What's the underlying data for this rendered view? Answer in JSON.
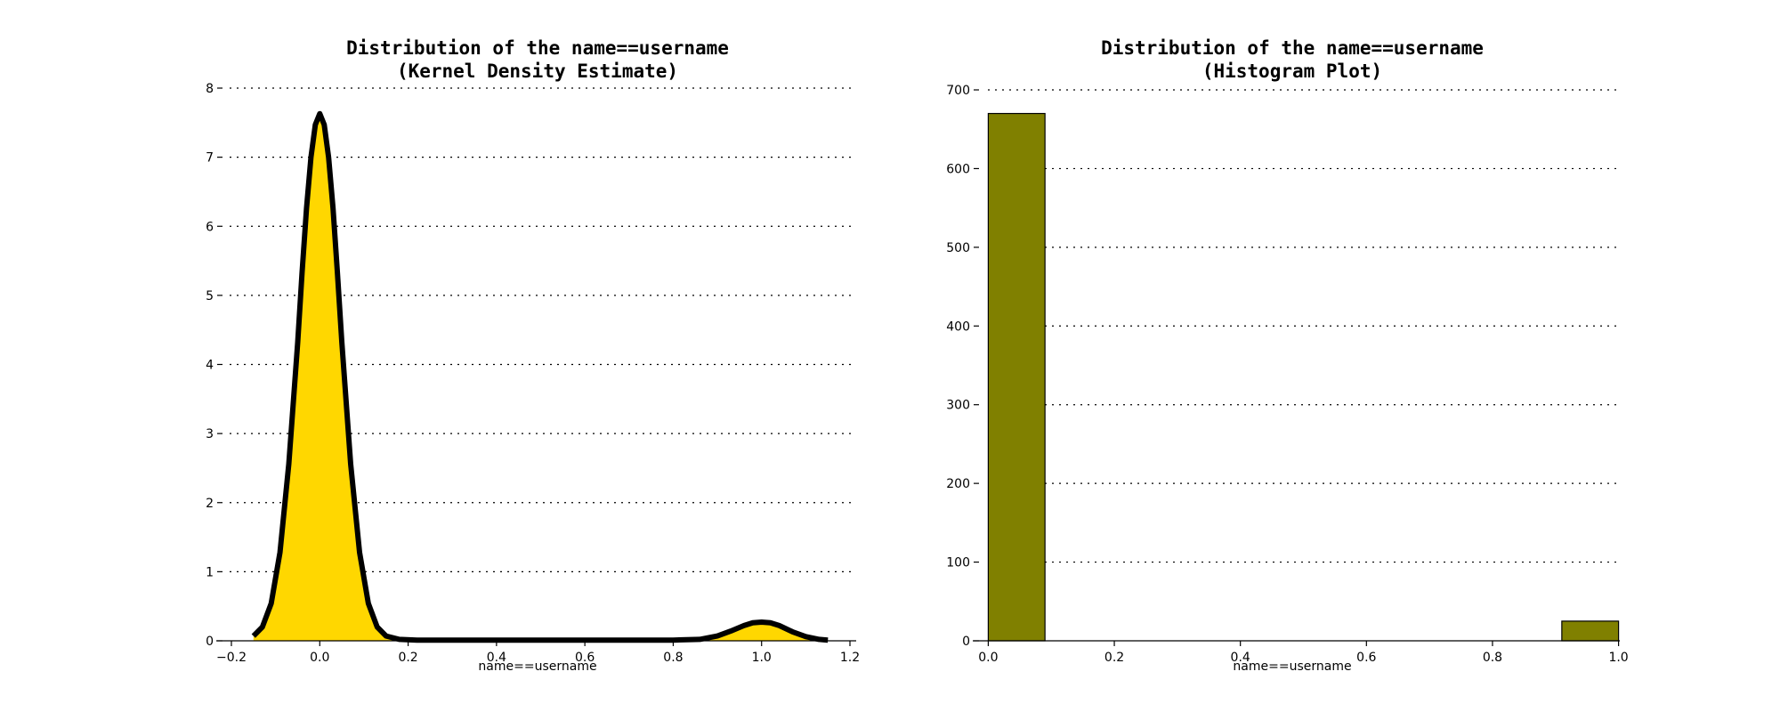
{
  "chart_data": [
    {
      "type": "area",
      "title_lines": [
        "Distribution of the name==username",
        "(Kernel Density Estimate)"
      ],
      "xlabel": "name==username",
      "ylabel": "",
      "xlim": [
        -0.2,
        1.2
      ],
      "ylim": [
        0,
        8
      ],
      "xticks": [
        "−0.2",
        "0.0",
        "0.2",
        "0.4",
        "0.6",
        "0.8",
        "1.0",
        "1.2"
      ],
      "xtick_values": [
        -0.2,
        0,
        0.2,
        0.4,
        0.6,
        0.8,
        1.0,
        1.2
      ],
      "yticks": [
        "0",
        "1",
        "2",
        "3",
        "4",
        "5",
        "6",
        "7",
        "8"
      ],
      "ytick_values": [
        0,
        1,
        2,
        3,
        4,
        5,
        6,
        7,
        8
      ],
      "grid": "y-dotted",
      "series": [
        {
          "x": [
            -0.15,
            -0.13,
            -0.11,
            -0.09,
            -0.07,
            -0.05,
            -0.04,
            -0.03,
            -0.02,
            -0.01,
            0.0,
            0.01,
            0.02,
            0.03,
            0.04,
            0.05,
            0.07,
            0.09,
            0.11,
            0.13,
            0.15,
            0.18,
            0.22,
            0.4,
            0.6,
            0.8,
            0.86,
            0.9,
            0.93,
            0.96,
            0.98,
            1.0,
            1.02,
            1.04,
            1.07,
            1.1,
            1.13,
            1.15
          ],
          "y": [
            0.07,
            0.2,
            0.54,
            1.28,
            2.56,
            4.32,
            5.33,
            6.26,
            7.0,
            7.47,
            7.63,
            7.47,
            7.0,
            6.26,
            5.33,
            4.32,
            2.56,
            1.28,
            0.54,
            0.2,
            0.07,
            0.02,
            0.01,
            0.01,
            0.01,
            0.01,
            0.02,
            0.07,
            0.14,
            0.22,
            0.26,
            0.27,
            0.26,
            0.22,
            0.13,
            0.06,
            0.02,
            0.01
          ]
        }
      ],
      "colors": {
        "fill": "#FFD700",
        "line": "#000000"
      }
    },
    {
      "type": "bar",
      "title_lines": [
        "Distribution of the name==username",
        "(Histogram Plot)"
      ],
      "xlabel": "name==username",
      "ylabel": "",
      "xlim": [
        -0.05,
        1.05
      ],
      "ylim": [
        0,
        700
      ],
      "xticks": [
        "0.0",
        "0.2",
        "0.4",
        "0.6",
        "0.8",
        "1.0"
      ],
      "xtick_values": [
        0,
        0.2,
        0.4,
        0.6,
        0.8,
        1.0
      ],
      "yticks": [
        "0",
        "100",
        "200",
        "300",
        "400",
        "500",
        "600",
        "700"
      ],
      "ytick_values": [
        0,
        100,
        200,
        300,
        400,
        500,
        600,
        700
      ],
      "grid": "y-dotted",
      "bins": [
        {
          "start": 0.0,
          "end": 0.09,
          "count": 670
        },
        {
          "start": 0.91,
          "end": 1.0,
          "count": 25
        }
      ],
      "colors": {
        "fill": "#808000",
        "line": "#000000"
      }
    }
  ]
}
